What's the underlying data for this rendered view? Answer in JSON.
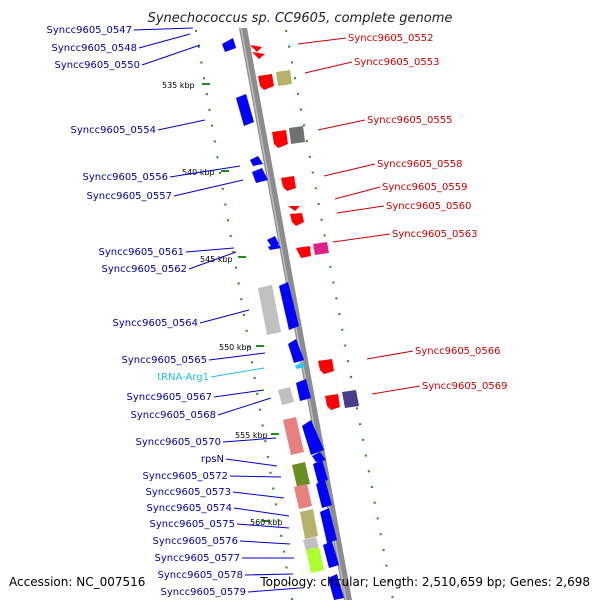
{
  "title": "Synechococcus sp. CC9605, complete genome",
  "footer": {
    "accession": "Accession: NC_007516",
    "topology": "Topology: circular; Length: 2,510,659 bp; Genes: 2,698"
  },
  "kbp_ticks": [
    "535 kbp",
    "540 kbp",
    "545 kbp",
    "550 kbp",
    "555 kbp",
    "560 kbp"
  ],
  "left_labels": [
    "Syncc9605_0547",
    "Syncc9605_0548",
    "Syncc9605_0550",
    "Syncc9605_0554",
    "Syncc9605_0556",
    "Syncc9605_0557",
    "Syncc9605_0561",
    "Syncc9605_0562",
    "Syncc9605_0564",
    "Syncc9605_0565",
    "tRNA-Arg1",
    "Syncc9605_0567",
    "Syncc9605_0568",
    "Syncc9605_0570",
    "rpsN",
    "Syncc9605_0572",
    "Syncc9605_0573",
    "Syncc9605_0574",
    "Syncc9605_0575",
    "Syncc9605_0576",
    "Syncc9605_0577",
    "Syncc9605_0578",
    "Syncc9605_0579"
  ],
  "right_labels": [
    "Syncc9605_0552",
    "Syncc9605_0553",
    "Syncc9605_0555",
    "Syncc9605_0558",
    "Syncc9605_0559",
    "Syncc9605_0560",
    "Syncc9605_0563",
    "Syncc9605_0566",
    "Syncc9605_0569"
  ],
  "colors": {
    "forward_label": "#0000aa",
    "reverse_label": "#cc0000",
    "trna_label": "#22bbee",
    "axis": "#8c8c8c",
    "tick": "#228B22"
  }
}
